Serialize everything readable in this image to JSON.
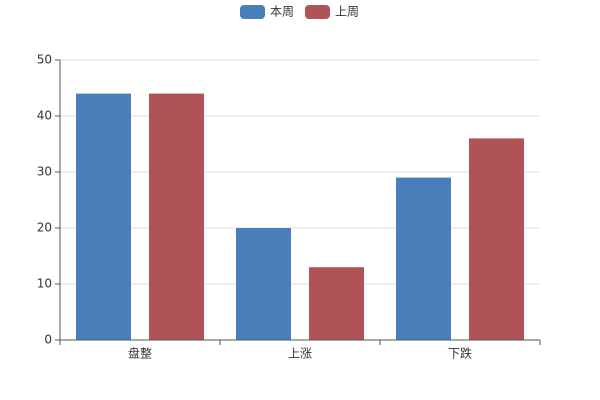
{
  "chart_data": {
    "type": "bar",
    "categories": [
      "盘整",
      "上涨",
      "下跌"
    ],
    "series": [
      {
        "name": "本周",
        "color": "#4a7ebb",
        "values": [
          44,
          20,
          29
        ]
      },
      {
        "name": "上周",
        "color": "#b05356",
        "values": [
          44,
          13,
          36
        ]
      }
    ],
    "ylim": [
      0,
      50
    ],
    "yticks": [
      0,
      10,
      20,
      30,
      40,
      50
    ],
    "grid": true,
    "legend": "top"
  }
}
